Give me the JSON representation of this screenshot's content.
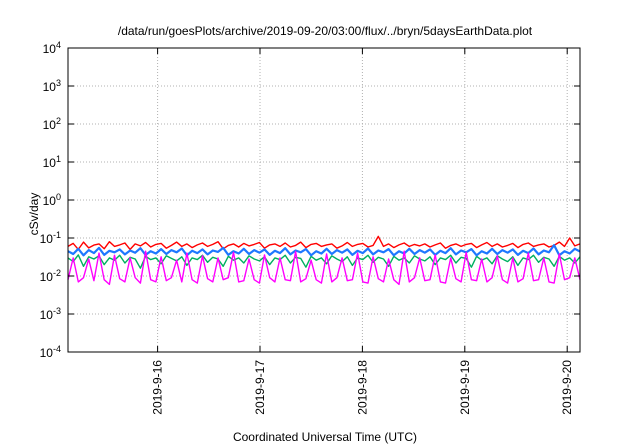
{
  "chart_data": {
    "type": "line",
    "title": "/data/run/goesPlots/archive/2019-09-20/03:00/flux/../bryn/5daysEarthData.plot",
    "xlabel": "Coordinated Universal Time (UTC)",
    "ylabel": "cSv/day",
    "yscale": "log",
    "ylim": [
      0.0001,
      10000
    ],
    "xlim": [
      "2019-09-15 03:00",
      "2019-09-20 03:00"
    ],
    "grid": true,
    "legend": "none",
    "x_ticks": [
      {
        "value": "2019-09-16 00:00",
        "label": "2019-9-16"
      },
      {
        "value": "2019-09-17 00:00",
        "label": "2019-9-17"
      },
      {
        "value": "2019-09-18 00:00",
        "label": "2019-9-18"
      },
      {
        "value": "2019-09-19 00:00",
        "label": "2019-9-19"
      },
      {
        "value": "2019-09-20 00:00",
        "label": "2019-9-20"
      }
    ],
    "y_ticks": [
      {
        "value": 0.0001,
        "base": "10",
        "exp": "-4"
      },
      {
        "value": 0.001,
        "base": "10",
        "exp": "-3"
      },
      {
        "value": 0.01,
        "base": "10",
        "exp": "-2"
      },
      {
        "value": 0.1,
        "base": "10",
        "exp": "-1"
      },
      {
        "value": 1,
        "base": "10",
        "exp": "0"
      },
      {
        "value": 10,
        "base": "10",
        "exp": "1"
      },
      {
        "value": 100,
        "base": "10",
        "exp": "2"
      },
      {
        "value": 1000,
        "base": "10",
        "exp": "3"
      },
      {
        "value": 10000,
        "base": "10",
        "exp": "4"
      }
    ],
    "series": [
      {
        "color": "#ff0000",
        "x_start": "2019-09-15 03:00",
        "x_end": "2019-09-20 03:00",
        "y": [
          0.06,
          0.072,
          0.05,
          0.078,
          0.055,
          0.065,
          0.07,
          0.052,
          0.08,
          0.06,
          0.066,
          0.074,
          0.05,
          0.07,
          0.062,
          0.076,
          0.058,
          0.068,
          0.072,
          0.054,
          0.064,
          0.078,
          0.06,
          0.07,
          0.056,
          0.066,
          0.074,
          0.06,
          0.068,
          0.08,
          0.052,
          0.064,
          0.07,
          0.058,
          0.072,
          0.062,
          0.068,
          0.076,
          0.054,
          0.066,
          0.07,
          0.06,
          0.074,
          0.058,
          0.064,
          0.078,
          0.056,
          0.068,
          0.072,
          0.06,
          0.066,
          0.07,
          0.054,
          0.062,
          0.076,
          0.06,
          0.068,
          0.072,
          0.058,
          0.064,
          0.11,
          0.06,
          0.07,
          0.056,
          0.066,
          0.074,
          0.06,
          0.068,
          0.062,
          0.07,
          0.058,
          0.066,
          0.074,
          0.054,
          0.064,
          0.07,
          0.06,
          0.068,
          0.072,
          0.056,
          0.066,
          0.076,
          0.06,
          0.07,
          0.058,
          0.064,
          0.072,
          0.056,
          0.068,
          0.074,
          0.06,
          0.066,
          0.07,
          0.058,
          0.064,
          0.078,
          0.06,
          0.1,
          0.062,
          0.07
        ]
      },
      {
        "color": "#00b060",
        "x_start": "2019-09-15 03:00",
        "x_end": "2019-09-20 03:00",
        "y": [
          0.03,
          0.024,
          0.036,
          0.018,
          0.032,
          0.028,
          0.034,
          0.02,
          0.03,
          0.026,
          0.035,
          0.022,
          0.031,
          0.028,
          0.016,
          0.033,
          0.027,
          0.03,
          0.021,
          0.034,
          0.029,
          0.025,
          0.032,
          0.019,
          0.03,
          0.027,
          0.035,
          0.023,
          0.031,
          0.028,
          0.018,
          0.033,
          0.026,
          0.03,
          0.022,
          0.034,
          0.028,
          0.025,
          0.032,
          0.02,
          0.03,
          0.027,
          0.035,
          0.022,
          0.031,
          0.029,
          0.017,
          0.033,
          0.026,
          0.03,
          0.021,
          0.034,
          0.028,
          0.024,
          0.032,
          0.019,
          0.03,
          0.027,
          0.035,
          0.023,
          0.031,
          0.028,
          0.018,
          0.033,
          0.026,
          0.03,
          0.022,
          0.034,
          0.028,
          0.025,
          0.032,
          0.02,
          0.03,
          0.027,
          0.035,
          0.022,
          0.031,
          0.029,
          0.017,
          0.033,
          0.026,
          0.03,
          0.021,
          0.034,
          0.028,
          0.024,
          0.032,
          0.019,
          0.03,
          0.027,
          0.035,
          0.023,
          0.031,
          0.028,
          0.018,
          0.033,
          0.026,
          0.03,
          0.022,
          0.032
        ]
      },
      {
        "color": "#1e78ff",
        "x_start": "2019-09-15 03:00",
        "x_end": "2019-09-20 03:00",
        "y": [
          0.045,
          0.038,
          0.052,
          0.035,
          0.048,
          0.04,
          0.055,
          0.036,
          0.046,
          0.042,
          0.05,
          0.037,
          0.047,
          0.041,
          0.054,
          0.036,
          0.045,
          0.039,
          0.051,
          0.038,
          0.048,
          0.042,
          0.053,
          0.035,
          0.046,
          0.04,
          0.05,
          0.037,
          0.047,
          0.043,
          0.055,
          0.036,
          0.045,
          0.039,
          0.052,
          0.038,
          0.048,
          0.041,
          0.05,
          0.036,
          0.046,
          0.04,
          0.054,
          0.037,
          0.047,
          0.042,
          0.051,
          0.035,
          0.045,
          0.039,
          0.052,
          0.038,
          0.048,
          0.041,
          0.05,
          0.036,
          0.046,
          0.04,
          0.053,
          0.037,
          0.047,
          0.042,
          0.051,
          0.035,
          0.045,
          0.039,
          0.052,
          0.038,
          0.048,
          0.041,
          0.05,
          0.036,
          0.046,
          0.04,
          0.054,
          0.037,
          0.047,
          0.042,
          0.051,
          0.035,
          0.045,
          0.039,
          0.052,
          0.038,
          0.048,
          0.041,
          0.05,
          0.036,
          0.046,
          0.04,
          0.053,
          0.037,
          0.047,
          0.042,
          0.065,
          0.035,
          0.045,
          0.039,
          0.052,
          0.044
        ]
      },
      {
        "color": "#ff00ff",
        "x_start": "2019-09-15 03:00",
        "x_end": "2019-09-20 03:00",
        "y": [
          0.008,
          0.03,
          0.007,
          0.009,
          0.028,
          0.0075,
          0.04,
          0.008,
          0.006,
          0.035,
          0.0085,
          0.007,
          0.03,
          0.009,
          0.0065,
          0.045,
          0.008,
          0.007,
          0.032,
          0.0075,
          0.009,
          0.026,
          0.007,
          0.04,
          0.008,
          0.0065,
          0.034,
          0.0085,
          0.007,
          0.03,
          0.008,
          0.009,
          0.042,
          0.007,
          0.0075,
          0.028,
          0.008,
          0.0065,
          0.036,
          0.009,
          0.007,
          0.03,
          0.008,
          0.0075,
          0.044,
          0.007,
          0.0085,
          0.026,
          0.008,
          0.0065,
          0.038,
          0.007,
          0.009,
          0.03,
          0.0075,
          0.008,
          0.04,
          0.007,
          0.0065,
          0.032,
          0.0085,
          0.007,
          0.028,
          0.008,
          0.006,
          0.045,
          0.007,
          0.009,
          0.03,
          0.0075,
          0.008,
          0.036,
          0.007,
          0.0065,
          0.03,
          0.0085,
          0.007,
          0.042,
          0.008,
          0.0075,
          0.028,
          0.007,
          0.009,
          0.034,
          0.008,
          0.0065,
          0.03,
          0.007,
          0.0085,
          0.04,
          0.0075,
          0.008,
          0.03,
          0.007,
          0.0065,
          0.038,
          0.008,
          0.009,
          0.03,
          0.008
        ]
      }
    ]
  }
}
